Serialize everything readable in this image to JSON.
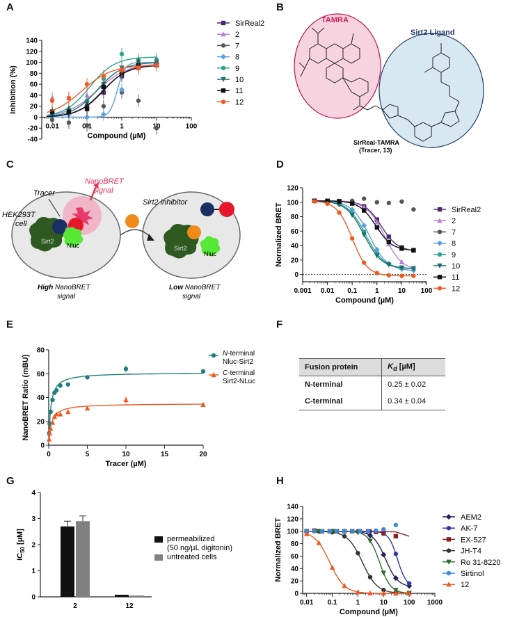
{
  "panel_labels": [
    "A",
    "B",
    "C",
    "D",
    "E",
    "F",
    "G",
    "H"
  ],
  "chart_data": [
    {
      "id": "A",
      "type": "scatter",
      "xlabel": "Compound (µM)",
      "ylabel": "Inhibition (%)",
      "xscale": "log",
      "xlim": [
        0.005,
        100
      ],
      "ylim": [
        -40,
        140
      ],
      "x_ticks": [
        "0.01",
        "0.1",
        "1",
        "10",
        "100"
      ],
      "y_ticks": [
        "-40",
        "-20",
        "0",
        "20",
        "40",
        "60",
        "80",
        "100",
        "120",
        "140"
      ],
      "legend_position": "right",
      "series": [
        {
          "name": "SirReal2",
          "color": "#4b2a6b",
          "marker": "square",
          "x": [
            0.01,
            0.03,
            0.1,
            0.3,
            1,
            3,
            10
          ],
          "y": [
            5,
            10,
            20,
            45,
            75,
            90,
            95
          ],
          "ic50": 0.3,
          "top": 97,
          "hill": 1.2
        },
        {
          "name": "2",
          "color": "#b87fd6",
          "marker": "triangle",
          "x": [
            0.01,
            0.03,
            0.1,
            0.3,
            1,
            3,
            10
          ],
          "y": [
            35,
            35,
            40,
            60,
            85,
            95,
            100
          ],
          "ic50": 0.2,
          "top": 98,
          "hill": 1.0
        },
        {
          "name": "7",
          "color": "#555555",
          "marker": "circle",
          "x": [
            0.01,
            0.03,
            0.1,
            0.3,
            1,
            3,
            10
          ],
          "y": [
            -5,
            -10,
            -15,
            20,
            45,
            30,
            -20
          ],
          "ic50": null
        },
        {
          "name": "8",
          "color": "#5aa0e0",
          "marker": "diamond",
          "x": [
            0.01,
            0.03,
            0.1,
            0.3,
            1,
            3,
            10
          ],
          "y": [
            5,
            5,
            0,
            5,
            50,
            95,
            100
          ],
          "ic50": 0.75,
          "top": 100,
          "hill": 4.0
        },
        {
          "name": "9",
          "color": "#2aa58c",
          "marker": "circle",
          "x": [
            0.01,
            0.03,
            0.1,
            0.3,
            1,
            3,
            10
          ],
          "y": [
            10,
            15,
            30,
            70,
            115,
            105,
            105
          ],
          "ic50": 0.12,
          "top": 110,
          "hill": 1.2
        },
        {
          "name": "10",
          "color": "#1f6f6f",
          "marker": "triangle-down",
          "x": [
            0.01,
            0.03,
            0.1,
            0.3,
            1,
            3,
            10
          ],
          "y": [
            5,
            10,
            25,
            60,
            90,
            100,
            100
          ],
          "ic50": 0.2,
          "top": 100,
          "hill": 1.2
        },
        {
          "name": "11",
          "color": "#111111",
          "marker": "square",
          "x": [
            0.01,
            0.03,
            0.1,
            0.3,
            1,
            3,
            10
          ],
          "y": [
            10,
            10,
            15,
            55,
            80,
            95,
            95
          ],
          "ic50": 0.28,
          "top": 95,
          "hill": 1.2
        },
        {
          "name": "12",
          "color": "#f05a22",
          "marker": "circle",
          "x": [
            0.01,
            0.03,
            0.1,
            0.3,
            1,
            3,
            10
          ],
          "y": [
            30,
            35,
            60,
            75,
            85,
            90,
            95
          ],
          "ic50": 0.07,
          "top": 95,
          "hill": 1.0
        }
      ]
    },
    {
      "id": "D",
      "type": "scatter",
      "xlabel": "Compound (µM)",
      "ylabel": "Normalized BRET",
      "xscale": "log",
      "xlim": [
        0.001,
        100
      ],
      "ylim": [
        -10,
        120
      ],
      "x_ticks": [
        "0.001",
        "0.01",
        "0.1",
        "1",
        "10",
        "100"
      ],
      "y_ticks": [
        "0",
        "20",
        "40",
        "60",
        "80",
        "100",
        "120"
      ],
      "legend_position": "right",
      "series": [
        {
          "name": "SirReal2",
          "color": "#4b2a6b",
          "marker": "square",
          "ic50": 1.5,
          "bottom": 32,
          "hill": 1.3
        },
        {
          "name": "2",
          "color": "#b87fd6",
          "marker": "triangle",
          "ic50": 2.0,
          "bottom": 5,
          "hill": 1.2
        },
        {
          "name": "7",
          "color": "#555555",
          "marker": "circle",
          "ic50": null,
          "flat": [
            102,
            101,
            100,
            102,
            105,
            100,
            99,
            101,
            90
          ]
        },
        {
          "name": "8",
          "color": "#5aa0e0",
          "marker": "diamond",
          "ic50": 0.5,
          "bottom": 5,
          "hill": 1.2
        },
        {
          "name": "9",
          "color": "#2aa58c",
          "marker": "circle",
          "ic50": 0.35,
          "bottom": 8,
          "hill": 1.2
        },
        {
          "name": "10",
          "color": "#1f6f6f",
          "marker": "triangle-down",
          "ic50": 0.3,
          "bottom": 8,
          "hill": 1.2
        },
        {
          "name": "11",
          "color": "#111111",
          "marker": "square",
          "ic50": 0.9,
          "bottom": 33,
          "hill": 1.3
        },
        {
          "name": "12",
          "color": "#f05a22",
          "marker": "circle",
          "ic50": 0.1,
          "bottom": -2,
          "hill": 1.4
        }
      ]
    },
    {
      "id": "E",
      "type": "scatter",
      "xlabel": "Tracer (µM)",
      "ylabel": "NanoBRET Ratio (mBU)",
      "xlim": [
        0,
        20
      ],
      "ylim": [
        0,
        80
      ],
      "x_ticks": [
        "0",
        "5",
        "10",
        "15",
        "20"
      ],
      "y_ticks": [
        "0",
        "20",
        "40",
        "60",
        "80"
      ],
      "series": [
        {
          "name": "N-terminal Nluc-Sirt2",
          "color": "#1f7f7f",
          "marker": "circle",
          "kd": 0.25,
          "bmax": 61,
          "x": [
            0.06,
            0.12,
            0.25,
            0.5,
            0.75,
            1.0,
            1.5,
            2.5,
            5,
            10,
            20
          ],
          "y": [
            10,
            18,
            28,
            38,
            44,
            46,
            50,
            51,
            57,
            64,
            62
          ]
        },
        {
          "name": "C-terminal Sirt2-NLuc",
          "color": "#f05a22",
          "marker": "triangle",
          "kd": 0.34,
          "bmax": 35,
          "x": [
            0.06,
            0.12,
            0.25,
            0.5,
            0.75,
            1.0,
            1.5,
            2.5,
            5,
            10,
            20
          ],
          "y": [
            5,
            10,
            14,
            19,
            24,
            26,
            26,
            28,
            31,
            38,
            34
          ]
        }
      ]
    },
    {
      "id": "G",
      "type": "bar",
      "ylabel": "IC50 [µM]",
      "categories": [
        "2",
        "12"
      ],
      "ylim": [
        0,
        4
      ],
      "y_ticks": [
        "0",
        "1",
        "2",
        "3",
        "4"
      ],
      "series": [
        {
          "name": "permeabilized\n(50 ng/µL digitonin)",
          "color": "#111111",
          "values": [
            2.7,
            0.08
          ]
        },
        {
          "name": "untreated cells",
          "color": "#808080",
          "values": [
            2.9,
            0.05
          ]
        }
      ]
    },
    {
      "id": "H",
      "type": "scatter",
      "xlabel": "Compound (µM)",
      "ylabel": "Normalized BRET",
      "xscale": "log",
      "xlim": [
        0.007,
        1000
      ],
      "ylim": [
        0,
        140
      ],
      "x_ticks": [
        "0.01",
        "0.1",
        "1",
        "10",
        "100",
        "1000"
      ],
      "y_ticks": [
        "0",
        "20",
        "40",
        "60",
        "80",
        "100",
        "120",
        "140"
      ],
      "series": [
        {
          "name": "AEM2",
          "color": "#2a1f5a",
          "marker": "diamond",
          "ic50": 12,
          "bottom": 10,
          "hill": 1.8
        },
        {
          "name": "AK-7",
          "color": "#2a3aa5",
          "marker": "circle",
          "ic50": 35,
          "bottom": 10,
          "hill": 2.5
        },
        {
          "name": "EX-527",
          "color": "#8a1f1f",
          "marker": "square",
          "ic50": null,
          "flat": [
            100,
            101,
            100,
            100,
            100,
            100,
            100,
            100,
            100,
            99,
            97,
            92
          ]
        },
        {
          "name": "JH-T4",
          "color": "#333333",
          "marker": "circle",
          "ic50": 1.5,
          "bottom": 0,
          "hill": 1.5
        },
        {
          "name": "Ro 31-8220",
          "color": "#2a6a2a",
          "marker": "triangle-down",
          "ic50": 7,
          "bottom": 0,
          "hill": 2.0
        },
        {
          "name": "Sirtinol",
          "color": "#3a8ae0",
          "marker": "circle",
          "ic50": null,
          "flat": [
            100,
            100,
            100,
            100,
            100,
            100,
            100,
            100,
            100,
            101,
            103,
            110
          ]
        },
        {
          "name": "12",
          "color": "#f05a22",
          "marker": "triangle",
          "ic50": 0.08,
          "bottom": 0,
          "hill": 1.5
        }
      ]
    }
  ],
  "panel_b": {
    "tamra_label": "TAMRA",
    "ligand_label": "Sirt2 Ligand",
    "tracer_label_line1": "SirReal-TAMRA",
    "tracer_label_line2": "(Tracer, 13)",
    "tamra_fill": "#f7d3e0",
    "tamra_stroke": "#c01050",
    "ligand_fill": "#d7e8f2",
    "ligand_stroke": "#1f3a66"
  },
  "panel_c": {
    "nanobret_signal_line1": "NanoBRET",
    "nanobret_signal_line2": "signal",
    "tracer": "Tracer",
    "cell_line1": "HEK293T",
    "cell_line2": "cell",
    "sirt2": "Sirt2",
    "nluc": "Nluc",
    "inhibitor": "Sirt2 inhibitor",
    "high_label_bold": "High",
    "high_label_rest": "NanoBRET",
    "high_label_line2": "signal",
    "low_label_bold": "Low",
    "low_label_rest": "NanoBRET",
    "low_label_line2": "signal"
  },
  "table_f": {
    "header_col1": "Fusion protein",
    "header_col2_k": "K",
    "header_col2_sub": "d",
    "header_col2_unit": " [µM]",
    "rows": [
      {
        "protein": "N-terminal",
        "kd": "0.25 ± 0.02"
      },
      {
        "protein": "C-terminal",
        "kd": "0.34 ± 0.04"
      }
    ]
  }
}
